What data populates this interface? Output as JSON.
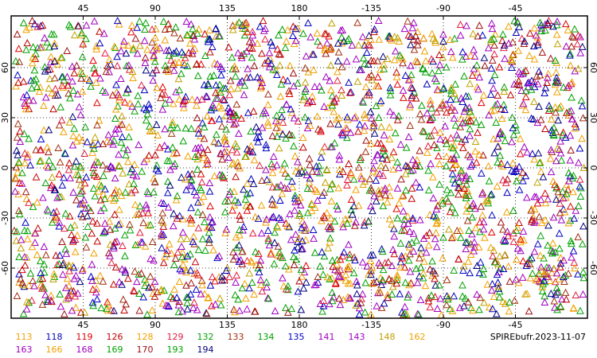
{
  "title": "SPIREbufr.2023-11-07",
  "map": {
    "lon_ticks": [
      45,
      90,
      135,
      180,
      -135,
      -90,
      -45
    ],
    "lat_ticks": [
      60,
      30,
      0,
      -30,
      -60
    ]
  },
  "legend": [
    {
      "label": "113",
      "color": "#f0a000"
    },
    {
      "label": "118",
      "color": "#0000c0"
    },
    {
      "label": "119",
      "color": "#e00000"
    },
    {
      "label": "126",
      "color": "#c00000"
    },
    {
      "label": "128",
      "color": "#f0a000"
    },
    {
      "label": "129",
      "color": "#e02040"
    },
    {
      "label": "132",
      "color": "#00a000"
    },
    {
      "label": "133",
      "color": "#a03010"
    },
    {
      "label": "134",
      "color": "#00a000"
    },
    {
      "label": "135",
      "color": "#0000c0"
    },
    {
      "label": "141",
      "color": "#a000c0"
    },
    {
      "label": "143",
      "color": "#a000c0"
    },
    {
      "label": "148",
      "color": "#c0a000"
    },
    {
      "label": "162",
      "color": "#f0a000"
    },
    {
      "label": "163",
      "color": "#a000c0"
    },
    {
      "label": "166",
      "color": "#f0a000"
    },
    {
      "label": "168",
      "color": "#a000c0"
    },
    {
      "label": "169",
      "color": "#00a000"
    },
    {
      "label": "170",
      "color": "#a01010"
    },
    {
      "label": "193",
      "color": "#00a000"
    },
    {
      "label": "194",
      "color": "#000080"
    }
  ]
}
